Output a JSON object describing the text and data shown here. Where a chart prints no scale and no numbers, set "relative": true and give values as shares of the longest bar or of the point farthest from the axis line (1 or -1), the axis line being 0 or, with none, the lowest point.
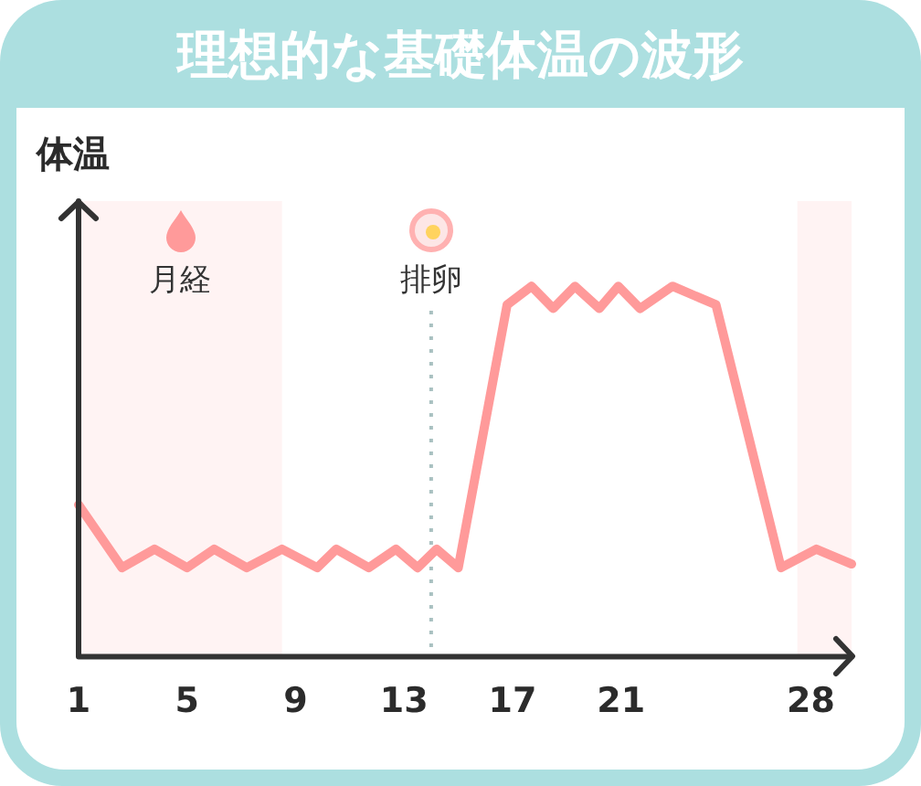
{
  "chart_data": {
    "type": "line",
    "title": "理想的な基礎体温の波形",
    "ylabel": "体温",
    "relative": true,
    "x": [
      1,
      2.6,
      3.8,
      5.0,
      6.0,
      7.2,
      8.5,
      9.8,
      10.5,
      11.7,
      12.7,
      13.5,
      14.2,
      15.0,
      16.8,
      17.7,
      18.5,
      19.3,
      20.2,
      20.9,
      21.7,
      22.9,
      24.5,
      26.9,
      28.2,
      29.5
    ],
    "series": [
      {
        "color": "#ff9a9a",
        "values": [
          0.41,
          0.24,
          0.29,
          0.24,
          0.29,
          0.24,
          0.29,
          0.24,
          0.29,
          0.24,
          0.29,
          0.24,
          0.29,
          0.24,
          0.95,
          1,
          0.94,
          1,
          0.94,
          1,
          0.94,
          1,
          0.95,
          0.24,
          0.29,
          0.25
        ]
      }
    ],
    "xlim": [
      1,
      29.5
    ],
    "xticks": [
      1,
      5,
      9,
      13,
      17,
      21,
      28
    ],
    "marker": "none",
    "bands": [
      {
        "axis": "x",
        "from": 1,
        "to": 8.5,
        "label": "月経",
        "color": "#fff3f3"
      },
      {
        "axis": "x",
        "from": 27.5,
        "to": 29.5,
        "color": "#fff3f3"
      }
    ],
    "ref_lines": [
      {
        "axis": "x",
        "value": 14,
        "label": "排卵",
        "color": "#a9c1c1",
        "line_style": "dotted"
      }
    ]
  }
}
